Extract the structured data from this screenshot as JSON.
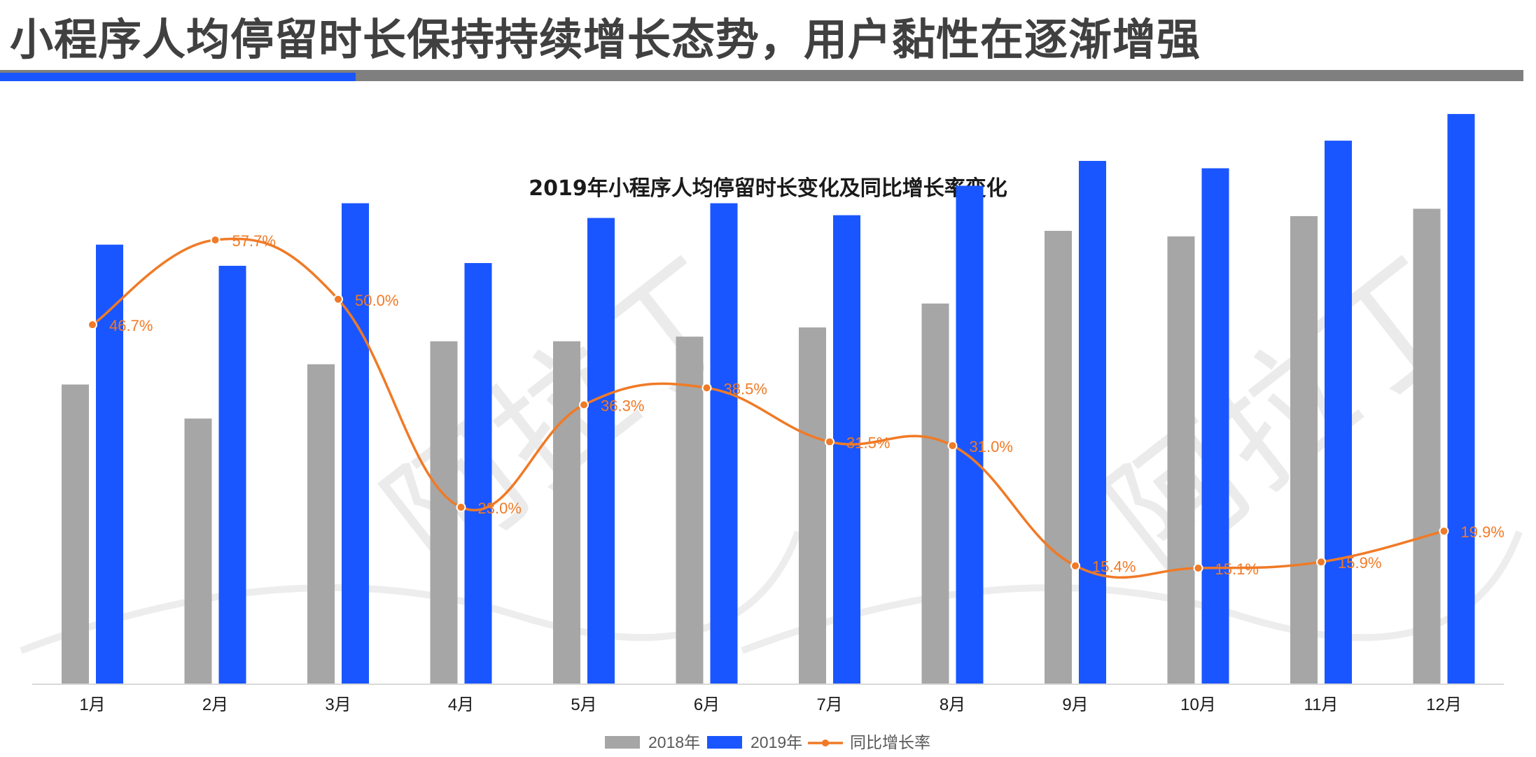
{
  "page": {
    "title": "小程序人均停留时长保持持续增长态势，用户黏性在逐渐增强"
  },
  "watermark": {
    "text": "阿拉丁"
  },
  "colors": {
    "series_2018": "#a6a6a6",
    "series_2019": "#1a56ff",
    "growth": "#f07a26",
    "rule_blue": "#1a56ff",
    "rule_gray": "#7f7f7f"
  },
  "chart_data": {
    "type": "bar",
    "title": "2019年小程序人均停留时长变化及同比增长率变化",
    "categories": [
      "1月",
      "2月",
      "3月",
      "4月",
      "5月",
      "6月",
      "7月",
      "8月",
      "9月",
      "10月",
      "11月",
      "12月"
    ],
    "series": [
      {
        "name": "2018年",
        "type": "bar",
        "values": [
          325,
          288,
          347,
          372,
          372,
          377,
          387,
          413,
          492,
          486,
          508,
          516
        ]
      },
      {
        "name": "2019年",
        "type": "bar",
        "values": [
          477,
          454,
          522,
          457,
          506,
          522,
          509,
          541,
          568,
          560,
          590,
          619
        ]
      },
      {
        "name": "同比增长率",
        "type": "line",
        "values": [
          46.7,
          57.7,
          50.0,
          23.0,
          36.3,
          38.5,
          31.5,
          31.0,
          15.4,
          15.1,
          15.9,
          19.9
        ],
        "labels": [
          "46.7%",
          "57.7%",
          "50.0%",
          "23.0%",
          "36.3%",
          "38.5%",
          "31.5%",
          "31.0%",
          "15.4%",
          "15.1%",
          "15.9%",
          "19.9%"
        ]
      }
    ],
    "legend_position": "bottom",
    "grid": false
  }
}
